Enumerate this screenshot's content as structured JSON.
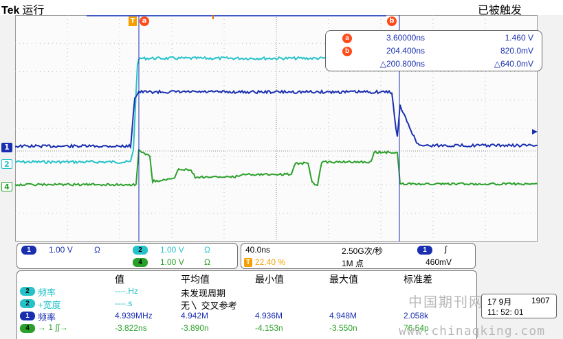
{
  "header": {
    "brand": "Tek",
    "run_state": "运行",
    "trigger_status": "已被触发"
  },
  "cursor_markers": {
    "a": "a",
    "b": "b",
    "trigger": "T"
  },
  "cursor_readout": {
    "a": {
      "label": "a",
      "time": "3.60000ns",
      "value": "1.460 V"
    },
    "b": {
      "label": "b",
      "time": "204.400ns",
      "value": "820.0mV"
    },
    "delta": {
      "time": "△200.800ns",
      "value": "△640.0mV"
    }
  },
  "channel_markers": {
    "ch1": "1",
    "ch2": "2",
    "ch4": "4"
  },
  "channels": {
    "ch1": {
      "badge": "1",
      "scale": "1.00 V",
      "coupling": "Ω"
    },
    "ch2": {
      "badge": "2",
      "scale": "1.00 V",
      "coupling": "Ω"
    },
    "ch4": {
      "badge": "4",
      "scale": "1.00 V",
      "coupling": "Ω"
    }
  },
  "timebase": {
    "per_div": "40.0ns",
    "sample_rate": "2.50G次/秒",
    "trig_channel": "1",
    "trig_slope": "∫",
    "trigger_pos": "22.40 %",
    "record_length": "1M 点",
    "trig_level": "460mV",
    "trigger_pos_badge": "T"
  },
  "measurements": {
    "headers": [
      "值",
      "平均值",
      "最小值",
      "最大值",
      "标准差"
    ],
    "rows": [
      {
        "badge": "2",
        "label": "频率",
        "value": "----.Hz",
        "mean": "未发现周期",
        "min": "",
        "max": "",
        "std": ""
      },
      {
        "badge": "2",
        "label": "+宽度",
        "value": "----.s",
        "mean": "无〵 交叉参考",
        "min": "",
        "max": "",
        "std": ""
      },
      {
        "badge": "1",
        "label": "频率",
        "value": "4.939MHz",
        "mean": "4.942M",
        "min": "4.936M",
        "max": "4.948M",
        "std": "2.058k"
      },
      {
        "badge": "4",
        "label": "→ 1 ∫∫→",
        "value": "-3.822ns",
        "mean": "-3.890n",
        "min": "-4.153n",
        "max": "-3.550n",
        "std": "76.54p"
      }
    ]
  },
  "datetime": {
    "date": "17 9月",
    "year": "1907",
    "time": "11: 52: 01"
  },
  "watermark": {
    "cn": "中国期刊网",
    "url": "www.chinaqking.com"
  },
  "colors": {
    "ch1": "#1a2fb0",
    "ch2": "#26c2c9",
    "ch4": "#2aa02a",
    "cursor": "#ff4a1a",
    "trigger": "#f5a000"
  }
}
